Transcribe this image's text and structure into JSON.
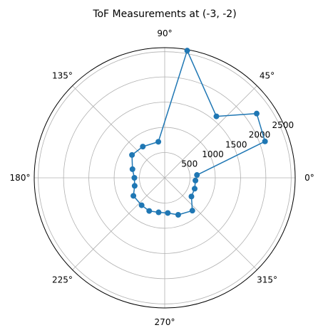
{
  "chart_data": {
    "type": "polar-line",
    "title": "ToF Measurements at (-3, -2)",
    "angle_ticks": [
      {
        "deg": 0,
        "label": "0°"
      },
      {
        "deg": 45,
        "label": "45°"
      },
      {
        "deg": 90,
        "label": "90°"
      },
      {
        "deg": 135,
        "label": "135°"
      },
      {
        "deg": 180,
        "label": "180°"
      },
      {
        "deg": 225,
        "label": "225°"
      },
      {
        "deg": 270,
        "label": "270°"
      },
      {
        "deg": 315,
        "label": "315°"
      }
    ],
    "radial_ticks": [
      {
        "value": 500,
        "label": "500"
      },
      {
        "value": 1000,
        "label": "1000"
      },
      {
        "value": 1500,
        "label": "1500"
      },
      {
        "value": 2000,
        "label": "2000"
      },
      {
        "value": 2500,
        "label": "2500"
      }
    ],
    "rlim": [
      0,
      2580
    ],
    "grid": true,
    "series": [
      {
        "color": "#1f77b4",
        "points": [
          {
            "theta": 5,
            "r": 640
          },
          {
            "theta": 20,
            "r": 2110
          },
          {
            "theta": 35,
            "r": 2220
          },
          {
            "theta": 50,
            "r": 1590
          },
          {
            "theta": 80,
            "r": 2560
          },
          {
            "theta": 100,
            "r": 725
          },
          {
            "theta": 125,
            "r": 755
          },
          {
            "theta": 145,
            "r": 790
          },
          {
            "theta": 165,
            "r": 660
          },
          {
            "theta": 180,
            "r": 600
          },
          {
            "theta": 195,
            "r": 615
          },
          {
            "theta": 210,
            "r": 715
          },
          {
            "theta": 230,
            "r": 710
          },
          {
            "theta": 245,
            "r": 725
          },
          {
            "theta": 260,
            "r": 695
          },
          {
            "theta": 275,
            "r": 700
          },
          {
            "theta": 290,
            "r": 780
          },
          {
            "theta": 310,
            "r": 850
          },
          {
            "theta": 325,
            "r": 645
          },
          {
            "theta": 340,
            "r": 630
          },
          {
            "theta": 355,
            "r": 610
          }
        ]
      }
    ]
  }
}
